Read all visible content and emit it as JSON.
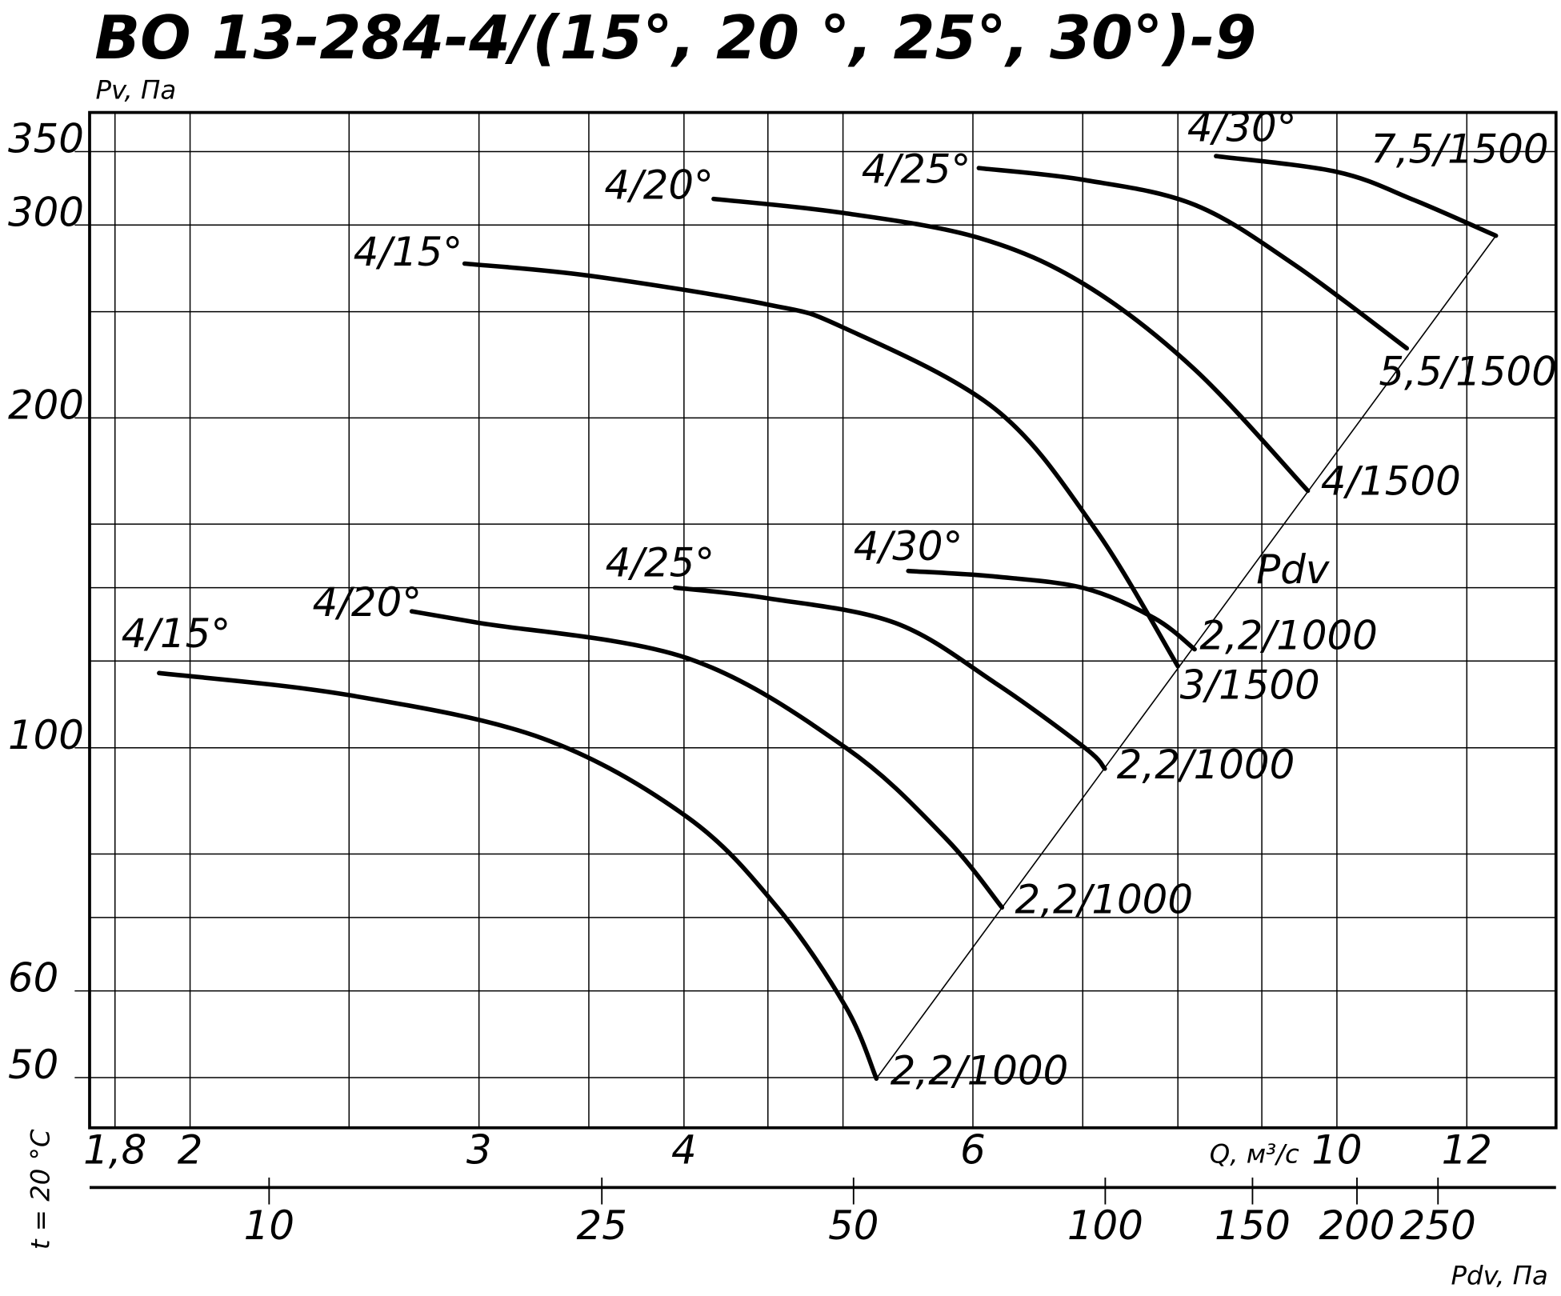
{
  "chart_data": {
    "type": "line",
    "title": "ВО 13-284-4/(15°, 20 °, 25°, 30°)-9",
    "y_label": "Pv, Па",
    "x_label": "Q, м³/с",
    "note": "t = 20 °C",
    "log_x": true,
    "log_y": true,
    "grid": true,
    "xlim": [
      1.737,
      13.6
    ],
    "ylim": [
      45,
      380
    ],
    "xticks": [
      {
        "value": 1.8,
        "label": "1,8"
      },
      2,
      3,
      4,
      6,
      10,
      12
    ],
    "xgrid": [
      2.5,
      3.5,
      4.5,
      5,
      7,
      8,
      9
    ],
    "yticks": [
      50,
      60,
      100,
      200,
      300,
      350
    ],
    "ygrid": [
      70,
      80,
      120,
      140,
      160,
      250
    ],
    "color": "#000000",
    "series": [
      {
        "name": "4/15°",
        "end_label": "2,2/1000",
        "x": [
          1.915,
          2.5,
          3.28,
          4.02,
          4.56,
          5.02,
          5.24
        ],
        "values": [
          117,
          111.7,
          102,
          86.4,
          71.5,
          58,
          49.9
        ]
      },
      {
        "name": "4/20°",
        "end_label": "2,2/1000",
        "x": [
          2.73,
          3.0,
          4.02,
          5.02,
          5.77,
          6.25
        ],
        "values": [
          133.2,
          130,
          120.7,
          100,
          82.8,
          71.5
        ]
      },
      {
        "name": "4/25°",
        "end_label": "2,2/1000",
        "x": [
          3.95,
          4.5,
          5.38,
          6.19,
          7.02,
          7.22
        ],
        "values": [
          140,
          136.9,
          130,
          114.6,
          100,
          95.7
        ]
      },
      {
        "name": "4/30°",
        "end_label": "2,2/1000",
        "x": [
          5.48,
          6.19,
          7.02,
          7.74,
          8.19
        ],
        "values": [
          145,
          143.3,
          139.8,
          131.3,
          123
        ]
      },
      {
        "name": "4/15°",
        "end_label": "3/1500",
        "x": [
          2.94,
          3.5,
          4.5,
          5.0,
          6.19,
          7.12,
          8.0
        ],
        "values": [
          276.6,
          269.7,
          253.8,
          241.9,
          203.8,
          158.5,
          118.7
        ]
      },
      {
        "name": "4/20°",
        "end_label": "4/1500",
        "x": [
          4.17,
          5.0,
          6.05,
          7.02,
          8.19,
          9.6
        ],
        "values": [
          316.9,
          307.7,
          292,
          264.7,
          221.5,
          171.6
        ]
      },
      {
        "name": "4/25°",
        "end_label": "5,5/1500",
        "x": [
          6.05,
          7.02,
          8.19,
          9.42,
          11.03
        ],
        "values": [
          338.1,
          329.7,
          313,
          276,
          231.5
        ]
      },
      {
        "name": "4/30°",
        "end_label": "7,5/1500",
        "x": [
          8.44,
          10.0,
          11.14,
          12.5
        ],
        "values": [
          346.7,
          335.4,
          316.2,
          293.3
        ]
      }
    ],
    "pdv_line": {
      "label": "Pdv",
      "x": [
        5.24,
        12.5
      ],
      "values": [
        49.9,
        293.3
      ]
    },
    "pdv_axis": {
      "label": "Pdv, Па",
      "lim": [
        6.1,
        346
      ],
      "ticks": [
        10,
        25,
        50,
        100,
        150,
        200,
        250
      ]
    }
  }
}
